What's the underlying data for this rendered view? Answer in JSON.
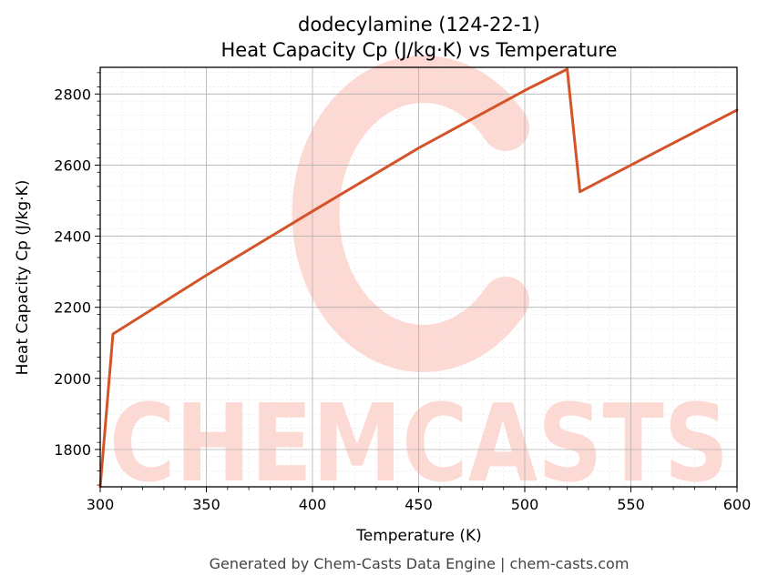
{
  "chart_data": {
    "type": "line",
    "title": "dodecylamine (124-22-1)",
    "subtitle": "Heat Capacity Cp (J/kg·K) vs Temperature",
    "xlabel": "Temperature (K)",
    "ylabel": "Heat Capacity Cp (J/kg·K)",
    "xlim": [
      300,
      600
    ],
    "ylim": [
      1695,
      2875
    ],
    "xticks": [
      300,
      350,
      400,
      450,
      500,
      550,
      600
    ],
    "yticks": [
      1800,
      2000,
      2200,
      2400,
      2600,
      2800
    ],
    "grid": true,
    "series": [
      {
        "color": "#d4542a",
        "x": [
          300,
          306,
          350,
          400,
          450,
          500,
          520,
          526,
          550,
          600
        ],
        "y": [
          1695,
          2125,
          2290,
          2470,
          2648,
          2810,
          2870,
          2525,
          2600,
          2755
        ]
      }
    ]
  },
  "watermark": {
    "text": "CHEMCASTS",
    "color": "#fdd9d3"
  },
  "footer": "Generated by Chem-Casts Data Engine | chem-casts.com"
}
